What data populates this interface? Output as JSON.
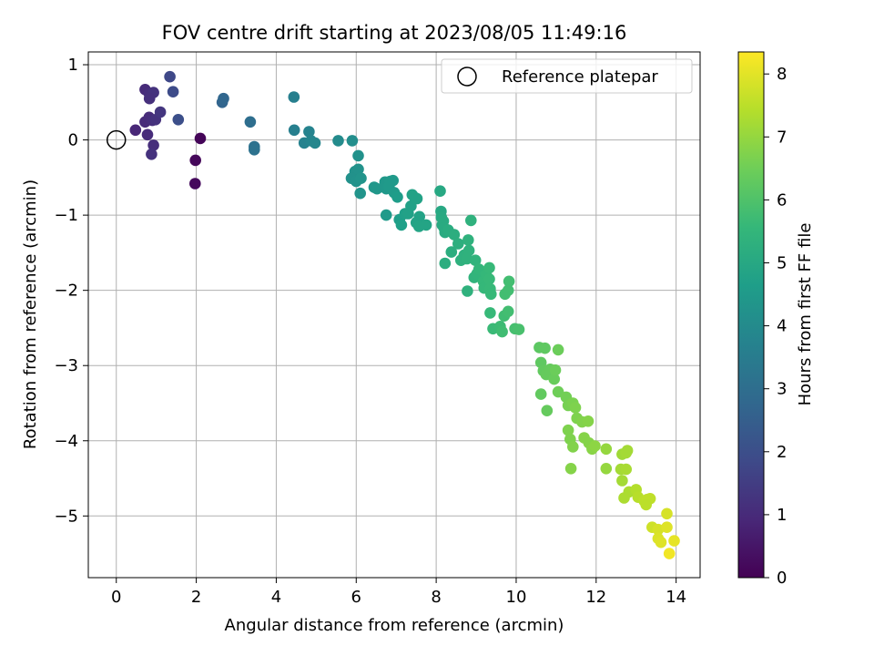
{
  "chart_data": {
    "type": "scatter",
    "title": "FOV centre drift starting at 2023/08/05 11:49:16",
    "xlabel": "Angular distance from reference (arcmin)",
    "ylabel": "Rotation from reference (arcmin)",
    "colorbar_label": "Hours from first FF file",
    "xlim": [
      -0.7,
      14.6
    ],
    "ylim": [
      -5.82,
      1.17
    ],
    "clim": [
      0,
      8.35
    ],
    "xticks": [
      0,
      2,
      4,
      6,
      8,
      10,
      12,
      14
    ],
    "yticks": [
      -5,
      -4,
      -3,
      -2,
      -1,
      0,
      1
    ],
    "cticks": [
      0,
      1,
      2,
      3,
      4,
      5,
      6,
      7,
      8
    ],
    "grid": true,
    "colormap": "viridis",
    "legend": {
      "position": "top-right",
      "entries": [
        {
          "label": "Reference platepar",
          "marker": "open-circle"
        }
      ]
    },
    "reference_point": {
      "x": 0,
      "y": 0
    },
    "points": [
      [
        2.1,
        0.02,
        0.1
      ],
      [
        1.98,
        -0.27,
        0.15
      ],
      [
        1.97,
        -0.58,
        0.2
      ],
      [
        0.72,
        0.67,
        1.0
      ],
      [
        0.82,
        0.62,
        1.1
      ],
      [
        0.93,
        0.63,
        1.2
      ],
      [
        0.83,
        0.55,
        1.15
      ],
      [
        0.48,
        0.13,
        0.9
      ],
      [
        0.72,
        0.24,
        1.0
      ],
      [
        0.82,
        0.3,
        1.05
      ],
      [
        0.9,
        0.26,
        1.1
      ],
      [
        0.98,
        0.27,
        1.2
      ],
      [
        1.1,
        0.37,
        1.3
      ],
      [
        0.78,
        0.07,
        1.05
      ],
      [
        0.93,
        -0.07,
        1.1
      ],
      [
        0.88,
        -0.19,
        1.2
      ],
      [
        1.34,
        0.84,
        1.8
      ],
      [
        1.42,
        0.64,
        1.9
      ],
      [
        1.55,
        0.27,
        2.0
      ],
      [
        2.65,
        0.5,
        2.7
      ],
      [
        2.68,
        0.55,
        2.75
      ],
      [
        3.35,
        0.24,
        3.0
      ],
      [
        3.45,
        -0.09,
        3.1
      ],
      [
        3.45,
        -0.13,
        3.15
      ],
      [
        4.44,
        0.57,
        3.6
      ],
      [
        4.45,
        0.13,
        3.6
      ],
      [
        4.7,
        -0.04,
        3.7
      ],
      [
        4.82,
        0.11,
        3.75
      ],
      [
        4.87,
        -0.01,
        3.8
      ],
      [
        4.97,
        -0.04,
        3.85
      ],
      [
        5.55,
        -0.01,
        4.0
      ],
      [
        5.9,
        -0.01,
        4.1
      ],
      [
        6.05,
        -0.21,
        4.2
      ],
      [
        5.97,
        -0.42,
        4.2
      ],
      [
        6.05,
        -0.39,
        4.25
      ],
      [
        5.88,
        -0.51,
        4.2
      ],
      [
        6.0,
        -0.55,
        4.25
      ],
      [
        6.12,
        -0.51,
        4.3
      ],
      [
        6.1,
        -0.71,
        4.3
      ],
      [
        6.45,
        -0.63,
        4.4
      ],
      [
        6.52,
        -0.65,
        4.4
      ],
      [
        6.72,
        -0.56,
        4.45
      ],
      [
        6.85,
        -0.55,
        4.5
      ],
      [
        6.92,
        -0.54,
        4.5
      ],
      [
        6.75,
        -0.65,
        4.45
      ],
      [
        6.82,
        -0.62,
        4.5
      ],
      [
        6.95,
        -0.7,
        4.55
      ],
      [
        7.03,
        -0.76,
        4.6
      ],
      [
        6.75,
        -1.0,
        4.5
      ],
      [
        7.08,
        -1.06,
        4.65
      ],
      [
        7.13,
        -1.13,
        4.7
      ],
      [
        7.22,
        -0.98,
        4.7
      ],
      [
        7.3,
        -0.98,
        4.75
      ],
      [
        7.37,
        -0.88,
        4.75
      ],
      [
        7.4,
        -0.73,
        4.8
      ],
      [
        7.47,
        -0.77,
        4.8
      ],
      [
        7.52,
        -0.78,
        4.8
      ],
      [
        7.58,
        -1.02,
        4.8
      ],
      [
        7.5,
        -1.1,
        4.8
      ],
      [
        7.57,
        -1.15,
        4.85
      ],
      [
        7.75,
        -1.13,
        4.85
      ],
      [
        8.1,
        -0.68,
        5.0
      ],
      [
        8.12,
        -0.95,
        5.0
      ],
      [
        8.13,
        -1.03,
        5.05
      ],
      [
        8.15,
        -1.13,
        5.05
      ],
      [
        8.18,
        -1.08,
        5.1
      ],
      [
        8.2,
        -1.17,
        5.1
      ],
      [
        8.22,
        -1.23,
        5.1
      ],
      [
        8.3,
        -1.2,
        5.15
      ],
      [
        8.45,
        -1.26,
        5.2
      ],
      [
        8.38,
        -1.49,
        5.2
      ],
      [
        8.22,
        -1.64,
        5.2
      ],
      [
        8.55,
        -1.38,
        5.25
      ],
      [
        8.62,
        -1.6,
        5.3
      ],
      [
        8.7,
        -1.53,
        5.3
      ],
      [
        8.77,
        -1.58,
        5.35
      ],
      [
        8.82,
        -1.47,
        5.35
      ],
      [
        8.8,
        -1.33,
        5.35
      ],
      [
        8.87,
        -1.07,
        5.35
      ],
      [
        8.78,
        -2.01,
        5.35
      ],
      [
        8.98,
        -1.6,
        5.4
      ],
      [
        8.95,
        -1.83,
        5.4
      ],
      [
        9.02,
        -1.78,
        5.45
      ],
      [
        9.07,
        -1.72,
        5.5
      ],
      [
        9.18,
        -1.88,
        5.55
      ],
      [
        9.2,
        -1.97,
        5.55
      ],
      [
        9.25,
        -1.79,
        5.55
      ],
      [
        9.33,
        -1.85,
        5.6
      ],
      [
        9.35,
        -1.98,
        5.6
      ],
      [
        9.33,
        -1.7,
        5.6
      ],
      [
        9.37,
        -2.05,
        5.6
      ],
      [
        9.35,
        -2.3,
        5.6
      ],
      [
        9.42,
        -2.51,
        5.65
      ],
      [
        9.6,
        -2.48,
        5.7
      ],
      [
        9.65,
        -2.55,
        5.75
      ],
      [
        9.7,
        -2.34,
        5.75
      ],
      [
        9.72,
        -2.05,
        5.8
      ],
      [
        9.8,
        -2.0,
        5.8
      ],
      [
        9.82,
        -1.88,
        5.8
      ],
      [
        9.8,
        -2.28,
        5.8
      ],
      [
        9.97,
        -2.51,
        5.85
      ],
      [
        10.07,
        -2.52,
        5.9
      ],
      [
        10.58,
        -2.76,
        6.2
      ],
      [
        10.72,
        -2.77,
        6.25
      ],
      [
        10.62,
        -2.96,
        6.25
      ],
      [
        10.68,
        -3.07,
        6.3
      ],
      [
        10.75,
        -3.12,
        6.35
      ],
      [
        10.85,
        -3.05,
        6.35
      ],
      [
        10.95,
        -3.18,
        6.4
      ],
      [
        10.98,
        -3.06,
        6.45
      ],
      [
        11.05,
        -2.79,
        6.45
      ],
      [
        10.62,
        -3.38,
        6.3
      ],
      [
        10.77,
        -3.6,
        6.35
      ],
      [
        11.05,
        -3.35,
        6.5
      ],
      [
        11.25,
        -3.42,
        6.55
      ],
      [
        11.3,
        -3.53,
        6.6
      ],
      [
        11.35,
        -3.52,
        6.6
      ],
      [
        11.42,
        -3.5,
        6.65
      ],
      [
        11.48,
        -3.56,
        6.7
      ],
      [
        11.52,
        -3.7,
        6.7
      ],
      [
        11.65,
        -3.75,
        6.75
      ],
      [
        11.8,
        -3.74,
        6.8
      ],
      [
        11.3,
        -3.86,
        6.7
      ],
      [
        11.35,
        -3.98,
        6.7
      ],
      [
        11.42,
        -4.08,
        6.75
      ],
      [
        11.7,
        -3.96,
        6.8
      ],
      [
        11.82,
        -4.03,
        6.8
      ],
      [
        11.9,
        -4.11,
        6.85
      ],
      [
        11.97,
        -4.07,
        6.9
      ],
      [
        11.37,
        -4.37,
        6.8
      ],
      [
        12.25,
        -4.11,
        7.0
      ],
      [
        12.25,
        -4.37,
        7.0
      ],
      [
        12.65,
        -4.18,
        7.15
      ],
      [
        12.75,
        -4.16,
        7.2
      ],
      [
        12.78,
        -4.13,
        7.2
      ],
      [
        12.62,
        -4.38,
        7.2
      ],
      [
        12.75,
        -4.38,
        7.25
      ],
      [
        12.65,
        -4.53,
        7.2
      ],
      [
        12.82,
        -4.68,
        7.3
      ],
      [
        12.7,
        -4.76,
        7.3
      ],
      [
        13.0,
        -4.65,
        7.4
      ],
      [
        13.05,
        -4.75,
        7.45
      ],
      [
        13.2,
        -4.8,
        7.5
      ],
      [
        13.28,
        -4.78,
        7.55
      ],
      [
        13.35,
        -4.77,
        7.55
      ],
      [
        13.25,
        -4.85,
        7.5
      ],
      [
        13.4,
        -5.15,
        7.75
      ],
      [
        13.55,
        -5.18,
        7.85
      ],
      [
        13.55,
        -5.3,
        7.9
      ],
      [
        13.62,
        -5.35,
        7.95
      ],
      [
        13.77,
        -4.97,
        7.85
      ],
      [
        13.77,
        -5.15,
        7.95
      ],
      [
        13.95,
        -5.33,
        8.05
      ],
      [
        13.83,
        -5.5,
        8.2
      ]
    ]
  },
  "colors": {
    "viridis_stops": [
      "#440154",
      "#482878",
      "#3e4a89",
      "#31688e",
      "#26828e",
      "#1f9e89",
      "#35b779",
      "#6ece58",
      "#b5de2b",
      "#fde725"
    ],
    "grid": "#b0b0b0",
    "axes": "#000000"
  }
}
